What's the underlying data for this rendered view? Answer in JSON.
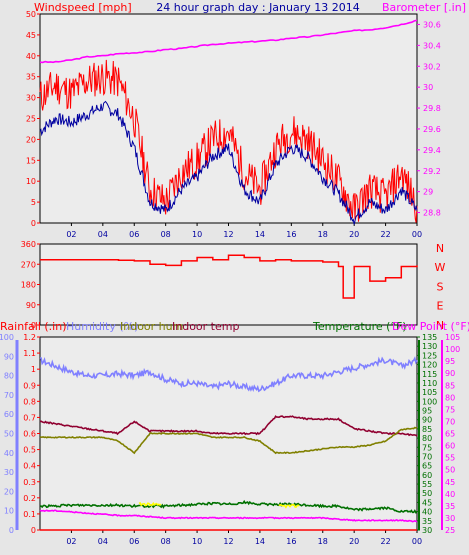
{
  "chart_data": [
    {
      "type": "line",
      "panel": "wind-pressure",
      "title": "24 hour graph day : January 13 2014",
      "left_axis_label": "Windspeed [mph]",
      "right_axis_label": "Barometer [.in]",
      "x_ticks": [
        "02",
        "04",
        "06",
        "08",
        "10",
        "12",
        "14",
        "16",
        "18",
        "20",
        "22",
        "00"
      ],
      "x": [
        0,
        1,
        2,
        3,
        4,
        5,
        6,
        7,
        8,
        9,
        10,
        11,
        12,
        13,
        14,
        15,
        16,
        17,
        18,
        19,
        20,
        21,
        22,
        23,
        24
      ],
      "left_ylim": [
        0,
        50
      ],
      "left_ticks": [
        "0",
        "5",
        "10",
        "15",
        "20",
        "25",
        "30",
        "35",
        "40",
        "45",
        "50"
      ],
      "right_ylim": [
        28.7,
        30.7
      ],
      "right_ticks": [
        "28.8",
        "29",
        "29.2",
        "29.4",
        "29.6",
        "29.8",
        "30",
        "30.2",
        "30.4",
        "30.6"
      ],
      "series": [
        {
          "color": "#ff0000",
          "axis": "left",
          "values": [
            30,
            33,
            31,
            34,
            35,
            34,
            25,
            8,
            5,
            12,
            15,
            20,
            22,
            12,
            8,
            18,
            22,
            20,
            15,
            10,
            3,
            8,
            6,
            12,
            4
          ]
        },
        {
          "color": "#0000a0",
          "axis": "left",
          "values": [
            22,
            25,
            24,
            26,
            28,
            26,
            18,
            5,
            3,
            8,
            11,
            16,
            18,
            8,
            5,
            14,
            18,
            16,
            11,
            7,
            1,
            5,
            3,
            8,
            3
          ]
        },
        {
          "color": "#ff00ff",
          "axis": "right",
          "values": [
            30.24,
            30.24,
            30.26,
            30.29,
            30.3,
            30.32,
            30.33,
            30.34,
            30.36,
            30.37,
            30.39,
            30.41,
            30.42,
            30.43,
            30.44,
            30.45,
            30.47,
            30.48,
            30.5,
            30.52,
            30.54,
            30.55,
            30.57,
            30.6,
            30.64
          ]
        }
      ]
    },
    {
      "type": "line",
      "panel": "wind-direction",
      "left_ylim": [
        0,
        360
      ],
      "left_ticks": [
        "0",
        "90",
        "180",
        "270",
        "360"
      ],
      "right_labels": [
        "N",
        "W",
        "S",
        "E",
        "N"
      ],
      "x": [
        0,
        1,
        2,
        3,
        4,
        5,
        6,
        7,
        8,
        9,
        10,
        11,
        12,
        13,
        14,
        15,
        16,
        17,
        18,
        19,
        19.3,
        20,
        21,
        22,
        23,
        24
      ],
      "series": [
        {
          "color": "#ff0000",
          "values": [
            290,
            290,
            290,
            290,
            290,
            288,
            285,
            270,
            265,
            285,
            300,
            290,
            310,
            300,
            285,
            290,
            285,
            285,
            280,
            260,
            120,
            260,
            195,
            210,
            260,
            265
          ]
        }
      ]
    },
    {
      "type": "line",
      "panel": "temperature-humidity-rain",
      "labels": [
        "Rainfall (.in)",
        "Humidity (%)",
        "Indoor hum",
        "Indoor temp",
        "Temperature (°F)",
        "Dew Point (°F)"
      ],
      "x": [
        0,
        1,
        2,
        3,
        4,
        5,
        6,
        7,
        8,
        9,
        10,
        11,
        12,
        13,
        14,
        15,
        16,
        17,
        18,
        19,
        20,
        21,
        22,
        23,
        24
      ],
      "humidity_ticks": [
        "0",
        "10",
        "20",
        "30",
        "40",
        "50",
        "60",
        "70",
        "80",
        "90",
        "100"
      ],
      "rain_ticks": [
        "0",
        "0.1",
        "0.2",
        "0.3",
        "0.4",
        "0.5",
        "0.6",
        "0.7",
        "0.8",
        "0.9",
        "1",
        "1.1",
        "1.2"
      ],
      "temperature_ticks": [
        "30",
        "35",
        "40",
        "45",
        "50",
        "55",
        "60",
        "65",
        "70",
        "75",
        "80",
        "85",
        "90",
        "95",
        "100",
        "105",
        "110",
        "115",
        "120",
        "125",
        "130",
        "135"
      ],
      "dew_point_ticks": [
        "25",
        "30",
        "35",
        "40",
        "45",
        "50",
        "55",
        "60",
        "65",
        "70",
        "75",
        "80",
        "85",
        "90",
        "95",
        "100",
        "105"
      ],
      "series": [
        {
          "name": "Humidity (%)",
          "color": "#8080ff",
          "axis": "humidity",
          "values": [
            88,
            85,
            82,
            80,
            80,
            81,
            80,
            82,
            78,
            76,
            76,
            74,
            76,
            74,
            73,
            76,
            80,
            80,
            80,
            82,
            84,
            86,
            88,
            85,
            88
          ]
        },
        {
          "name": "Indoor temp",
          "color": "#900030",
          "axis": "dew",
          "values": [
            70,
            69,
            68,
            67,
            66,
            65,
            70,
            66,
            66,
            66,
            66,
            65,
            65,
            65,
            65,
            72,
            72,
            71,
            71,
            71,
            67,
            66,
            65,
            65,
            64
          ]
        },
        {
          "name": "Indoor hum",
          "color": "#808000",
          "axis": "humidity",
          "values": [
            48,
            48,
            48,
            48,
            48,
            46,
            40,
            50,
            50,
            50,
            50,
            48,
            48,
            48,
            46,
            40,
            40,
            41,
            42,
            43,
            43,
            44,
            46,
            52,
            53
          ]
        },
        {
          "name": "Temperature (°F)",
          "color": "#007000",
          "axis": "temperature",
          "values": [
            43,
            43,
            43.5,
            43.5,
            43.5,
            43.5,
            43,
            43,
            43,
            43.5,
            44,
            44.5,
            44,
            45,
            44,
            44,
            44,
            43.5,
            43,
            43,
            41,
            41.5,
            42,
            40,
            40
          ]
        },
        {
          "name": "Dew Point (°F)",
          "color": "#ff00ff",
          "axis": "dew",
          "values": [
            33,
            33,
            32.5,
            32,
            31.5,
            31,
            31,
            30.5,
            30,
            30,
            30,
            30,
            30,
            30,
            30,
            30,
            30,
            30,
            30,
            29.5,
            29,
            29,
            29,
            29,
            28.5
          ]
        },
        {
          "name": "Rainfall",
          "color": "#ff0000",
          "axis": "rain",
          "values": [
            0,
            0,
            0,
            0,
            0,
            0,
            0,
            0,
            0,
            0,
            0,
            0,
            0,
            0,
            0,
            0,
            0,
            0,
            0,
            0,
            0,
            0,
            0,
            0,
            0
          ]
        }
      ],
      "highlights": [
        {
          "color": "#ffff00",
          "from": 6.3,
          "to": 7.7,
          "axis": "temperature",
          "value": 44
        },
        {
          "color": "#ffff00",
          "from": 15.2,
          "to": 16.5,
          "axis": "temperature",
          "value": 43
        }
      ],
      "x_ticks": [
        "02",
        "04",
        "06",
        "08",
        "10",
        "12",
        "14",
        "16",
        "18",
        "20",
        "22",
        "00"
      ]
    }
  ]
}
